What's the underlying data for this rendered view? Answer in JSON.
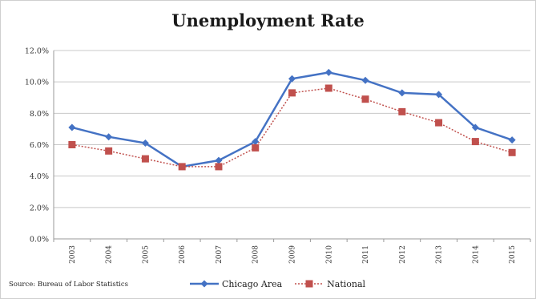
{
  "chart_data": {
    "type": "line",
    "title": "Unemployment Rate",
    "categories": [
      "2003",
      "2004",
      "2005",
      "2006",
      "2007",
      "2008",
      "2009",
      "2010",
      "2011",
      "2012",
      "2013",
      "2014",
      "2015"
    ],
    "series": [
      {
        "name": "Chicago Area",
        "values": [
          7.1,
          6.5,
          6.1,
          4.6,
          5.0,
          6.2,
          10.2,
          10.6,
          10.1,
          9.3,
          9.2,
          7.1,
          6.3
        ],
        "color": "#4472c4",
        "marker": "diamond",
        "line_style": "solid"
      },
      {
        "name": "National",
        "values": [
          6.0,
          5.6,
          5.1,
          4.6,
          4.6,
          5.8,
          9.3,
          9.6,
          8.9,
          8.1,
          7.4,
          6.2,
          5.5
        ],
        "color": "#c0504d",
        "marker": "square",
        "line_style": "dotted"
      }
    ],
    "ylim": [
      0,
      12
    ],
    "ytick_labels": [
      "0.0%",
      "2.0%",
      "4.0%",
      "6.0%",
      "8.0%",
      "10.0%",
      "12.0%"
    ],
    "grid": "horizontal",
    "legend_position": "bottom",
    "source": "Source: Bureau of Labor Statistics"
  }
}
